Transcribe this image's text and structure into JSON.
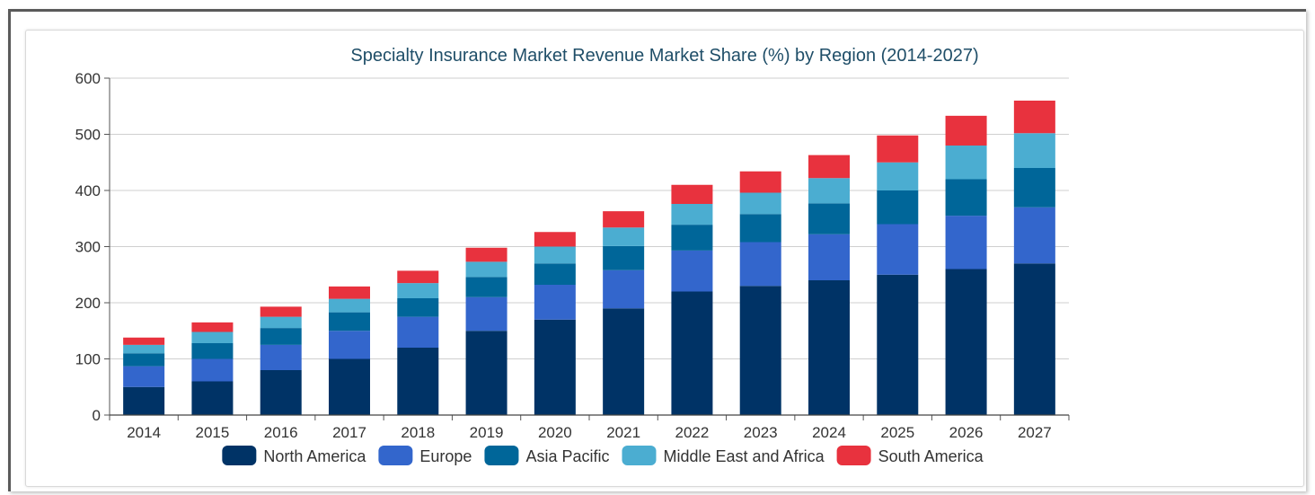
{
  "chart_data": {
    "type": "bar",
    "stacked": true,
    "title": "Specialty Insurance Market Revenue Market Share (%) by Region (2014-2027)",
    "xlabel": "",
    "ylabel": "",
    "ylim": [
      0,
      600
    ],
    "yticks": [
      "0",
      "100",
      "200",
      "300",
      "400",
      "500",
      "600"
    ],
    "grid": true,
    "legend_position": "bottom",
    "categories": [
      "2014",
      "2015",
      "2016",
      "2017",
      "2018",
      "2019",
      "2020",
      "2021",
      "2022",
      "2023",
      "2024",
      "2025",
      "2026",
      "2027"
    ],
    "series": [
      {
        "name": "North America",
        "color": "#003366",
        "values": [
          50,
          60,
          80,
          100,
          120,
          150,
          170,
          190,
          220,
          230,
          240,
          250,
          260,
          270
        ]
      },
      {
        "name": "Europe",
        "color": "#3366cc",
        "values": [
          37,
          40,
          45,
          50,
          55,
          60,
          62,
          68,
          73,
          78,
          82,
          90,
          95,
          100
        ]
      },
      {
        "name": "Asia Pacific",
        "color": "#006699",
        "values": [
          23,
          28,
          30,
          33,
          33,
          36,
          38,
          43,
          46,
          50,
          55,
          60,
          65,
          70
        ]
      },
      {
        "name": "Middle East and Africa",
        "color": "#4badd1",
        "values": [
          15,
          20,
          20,
          24,
          27,
          27,
          30,
          33,
          37,
          38,
          45,
          50,
          60,
          62
        ]
      },
      {
        "name": "South America",
        "color": "#e8323e",
        "values": [
          13,
          17,
          18,
          22,
          22,
          25,
          26,
          29,
          34,
          38,
          41,
          48,
          53,
          58
        ]
      }
    ]
  }
}
